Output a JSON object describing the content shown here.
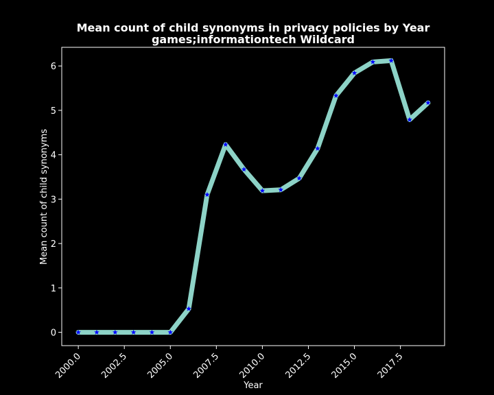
{
  "chart_data": {
    "type": "line",
    "title": "Mean count of child synonyms in privacy policies by Year",
    "subtitle": "games;informationtech Wildcard",
    "xlabel": "Year",
    "ylabel": "Mean count of child synonyms",
    "xlim": [
      1999.1,
      2019.9
    ],
    "ylim": [
      -0.3,
      6.42
    ],
    "xticks": [
      2000.0,
      2002.5,
      2005.0,
      2007.5,
      2010.0,
      2012.5,
      2015.0,
      2017.5
    ],
    "xtick_labels": [
      "2000.0",
      "2002.5",
      "2005.0",
      "2007.5",
      "2010.0",
      "2012.5",
      "2015.0",
      "2017.5"
    ],
    "yticks": [
      0,
      1,
      2,
      3,
      4,
      5,
      6
    ],
    "ytick_labels": [
      "0",
      "1",
      "2",
      "3",
      "4",
      "5",
      "6"
    ],
    "grid": false,
    "series": [
      {
        "x": [
          2000,
          2001,
          2002,
          2003,
          2004,
          2005,
          2006,
          2007,
          2008,
          2009,
          2010,
          2011,
          2012,
          2013,
          2014,
          2015,
          2016,
          2017,
          2018,
          2019
        ],
        "values": [
          0,
          0,
          0,
          0,
          0,
          0,
          0.53,
          3.1,
          4.23,
          3.67,
          3.19,
          3.21,
          3.47,
          4.14,
          5.33,
          5.84,
          6.09,
          6.12,
          4.79,
          5.17
        ],
        "line_color": "#8dd3c7",
        "marker": "star",
        "marker_color": "#0000ff"
      }
    ]
  }
}
